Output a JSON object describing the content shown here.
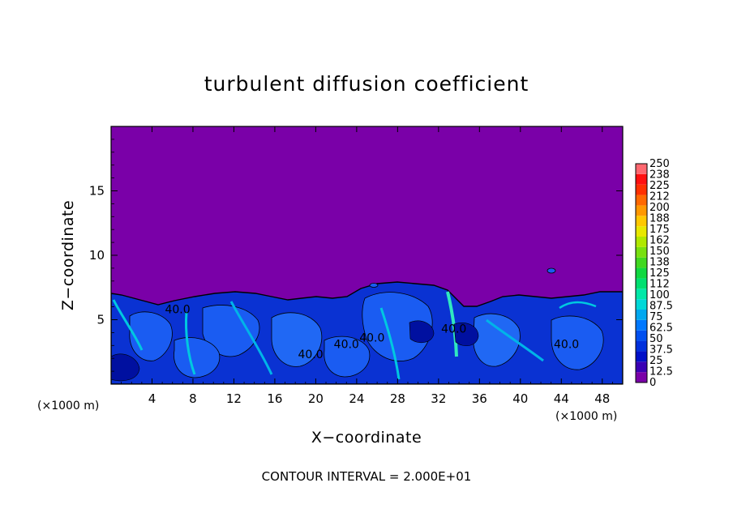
{
  "chart_data": {
    "type": "heatmap",
    "title": "turbulent diffusion coefficient",
    "xlabel": "X−coordinate",
    "ylabel": "Z−coordinate",
    "x_unit_left": "(×1000 m)",
    "x_unit_right": "(×1000 m)",
    "xlim": [
      0,
      50
    ],
    "ylim": [
      0,
      20
    ],
    "x_ticks": [
      4,
      8,
      12,
      16,
      20,
      24,
      28,
      32,
      36,
      40,
      44,
      48
    ],
    "x_tick_labels": [
      "4",
      "8",
      "12",
      "16",
      "20",
      "24",
      "28",
      "32",
      "36",
      "40",
      "44",
      "48"
    ],
    "y_ticks": [
      5,
      10,
      15
    ],
    "y_tick_labels": [
      "5",
      "10",
      "15"
    ],
    "colorbar": {
      "levels": [
        0,
        12.5,
        25,
        37.5,
        50,
        62.5,
        75,
        87.5,
        100,
        112,
        125,
        138,
        150,
        162,
        175,
        188,
        200,
        212,
        225,
        238,
        250
      ],
      "labels": [
        "0",
        "12.5",
        "25",
        "37.5",
        "50",
        "62.5",
        "75",
        "87.5",
        "100",
        "112",
        "125",
        "138",
        "150",
        "162",
        "175",
        "188",
        "200",
        "212",
        "225",
        "238",
        "250"
      ],
      "colors": [
        "#7a00a8",
        "#3a00b4",
        "#0010c8",
        "#0030dc",
        "#0050f0",
        "#0078ff",
        "#00a8f0",
        "#00d8d8",
        "#00e8a8",
        "#00e070",
        "#10d840",
        "#40d820",
        "#78e010",
        "#b0e800",
        "#e8e800",
        "#ffc800",
        "#ff9800",
        "#ff6800",
        "#ff3000",
        "#ff1010",
        "#ff6870"
      ]
    },
    "background_value": 0,
    "contour_labels": [
      {
        "text": "40.0",
        "x": 6.5,
        "z": 5.5
      },
      {
        "text": "40.0",
        "x": 19.5,
        "z": 2.0
      },
      {
        "text": "40.0",
        "x": 23.0,
        "z": 2.8
      },
      {
        "text": "40.0",
        "x": 25.5,
        "z": 3.3
      },
      {
        "text": "40.0",
        "x": 33.5,
        "z": 4.0
      },
      {
        "text": "40.0",
        "x": 44.5,
        "z": 2.8
      }
    ],
    "contour_interval_text": "CONTOUR INTERVAL = 2.000E+01"
  }
}
